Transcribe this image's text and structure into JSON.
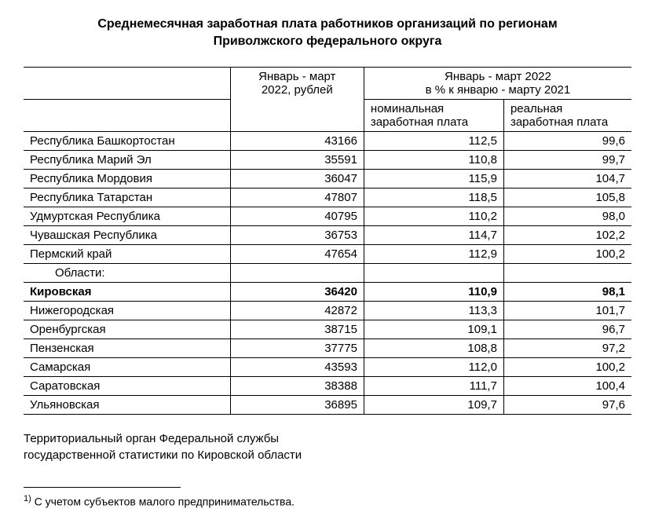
{
  "title_line1": "Среднемесячная заработная плата работников организаций по регионам",
  "title_line2": "Приволжского федерального округа",
  "header": {
    "col1_line1": "Январь - март",
    "col1_line2": "2022, рублей",
    "col_group_line1": "Январь - март 2022",
    "col_group_line2": "в % к январю - марту 2021",
    "sub1_line1": "номинальная",
    "sub1_line2": "заработная плата",
    "sub2_line1": "реальная",
    "sub2_line2": "заработная плата"
  },
  "section_label": "Области:",
  "rows_top": [
    {
      "name": "Республика Башкортостан",
      "v1": "43166",
      "v2": "112,5",
      "v3": "99,6"
    },
    {
      "name": "Республика Марий Эл",
      "v1": "35591",
      "v2": "110,8",
      "v3": "99,7"
    },
    {
      "name": "Республика Мордовия",
      "v1": "36047",
      "v2": "115,9",
      "v3": "104,7"
    },
    {
      "name": "Республика Татарстан",
      "v1": "47807",
      "v2": "118,5",
      "v3": "105,8"
    },
    {
      "name": "Удмуртская Республика",
      "v1": "40795",
      "v2": "110,2",
      "v3": "98,0"
    },
    {
      "name": "Чувашская Республика",
      "v1": "36753",
      "v2": "114,7",
      "v3": "102,2"
    },
    {
      "name": "Пермский край",
      "v1": "47654",
      "v2": "112,9",
      "v3": "100,2"
    }
  ],
  "row_bold": {
    "name": "Кировская",
    "v1": "36420",
    "v2": "110,9",
    "v3": "98,1"
  },
  "rows_bottom": [
    {
      "name": "Нижегородская",
      "v1": "42872",
      "v2": "113,3",
      "v3": "101,7"
    },
    {
      "name": "Оренбургская",
      "v1": "38715",
      "v2": "109,1",
      "v3": "96,7"
    },
    {
      "name": "Пензенская",
      "v1": "37775",
      "v2": "108,8",
      "v3": "97,2"
    },
    {
      "name": "Самарская",
      "v1": "43593",
      "v2": "112,0",
      "v3": "100,2"
    },
    {
      "name": "Саратовская",
      "v1": "38388",
      "v2": "111,7",
      "v3": "100,4"
    },
    {
      "name": "Ульяновская",
      "v1": "36895",
      "v2": "109,7",
      "v3": "97,6"
    }
  ],
  "source_line1": "Территориальный орган Федеральной службы",
  "source_line2": "государственной статистики по Кировской области",
  "footnote_marker": "1)",
  "footnote_text": " С учетом субъектов малого предпринимательства.",
  "col_widths": {
    "name": "34%",
    "v1": "22%",
    "v2": "23%",
    "v3": "21%"
  },
  "colors": {
    "border": "#000000",
    "bg": "#ffffff",
    "text": "#000000"
  }
}
